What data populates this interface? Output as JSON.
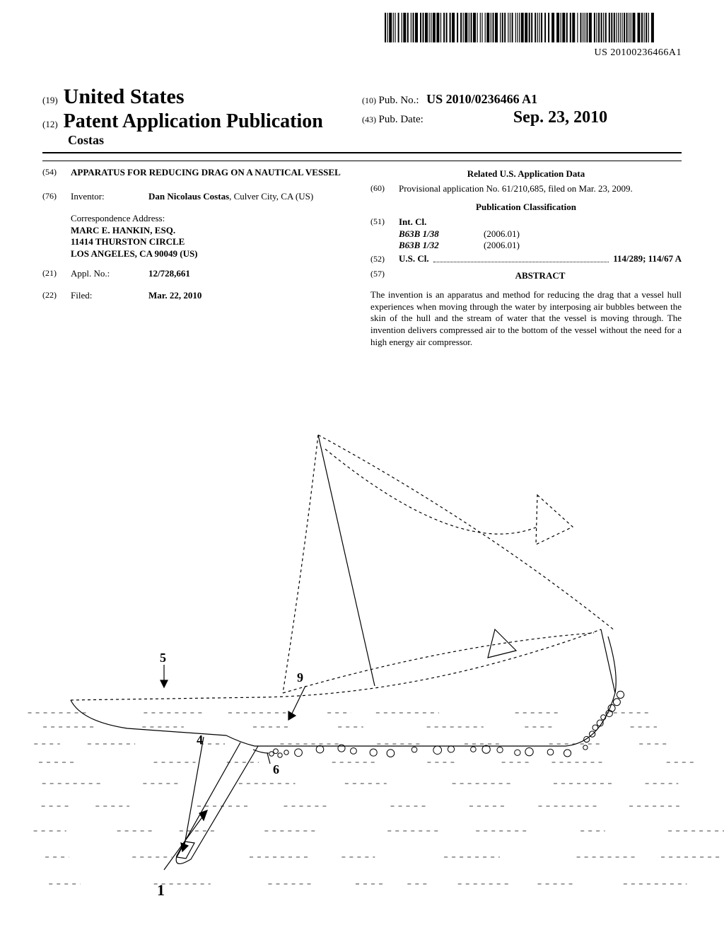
{
  "barcode": {
    "bars": 95,
    "text": "US 20100236466A1"
  },
  "header": {
    "code19": "(19)",
    "country": "United States",
    "code12": "(12)",
    "pubTitle": "Patent Application Publication",
    "author": "Costas",
    "code10": "(10)",
    "pubNoLabel": "Pub. No.:",
    "pubNo": "US 2010/0236466 A1",
    "code43": "(43)",
    "pubDateLabel": "Pub. Date:",
    "pubDate": "Sep. 23, 2010"
  },
  "left": {
    "code54": "(54)",
    "title": "APPARATUS FOR REDUCING DRAG ON A NAUTICAL VESSEL",
    "code76": "(76)",
    "inventorLabel": "Inventor:",
    "inventorName": "Dan Nicolaus Costas",
    "inventorLoc": ", Culver City, CA (US)",
    "corrLabel": "Correspondence Address:",
    "corrName": "MARC E. HANKIN, ESQ.",
    "corrStreet": "11414 THURSTON CIRCLE",
    "corrCity": "LOS ANGELES, CA 90049 (US)",
    "code21": "(21)",
    "applLabel": "Appl. No.:",
    "applNo": "12/728,661",
    "code22": "(22)",
    "filedLabel": "Filed:",
    "filedDate": "Mar. 22, 2010"
  },
  "right": {
    "relatedHead": "Related U.S. Application Data",
    "code60": "(60)",
    "provisional": "Provisional application No. 61/210,685, filed on Mar. 23, 2009.",
    "pubClassHead": "Publication Classification",
    "code51": "(51)",
    "intclLabel": "Int. Cl.",
    "intcl1": "B63B 1/38",
    "intcl1v": "(2006.01)",
    "intcl2": "B63B 1/32",
    "intcl2v": "(2006.01)",
    "code52": "(52)",
    "usclLabel": "U.S. Cl.",
    "usclVal": "114/289; 114/67 A",
    "code57": "(57)",
    "abstractLabel": "ABSTRACT",
    "abstract": "The invention is an apparatus and method for reducing the drag that a vessel hull experiences when moving through the water by interposing air bubbles between the skin of the hull and the stream of water that the vessel is moving through. The invention delivers compressed air to the bottom of the vessel without the need for a high energy air compressor."
  },
  "figure": {
    "labels": {
      "n1": "1",
      "n4": "4",
      "n5": "5",
      "n6": "6",
      "n9": "9"
    },
    "fontsize": 18,
    "bubble_radius": 4,
    "line_color": "#000000"
  }
}
